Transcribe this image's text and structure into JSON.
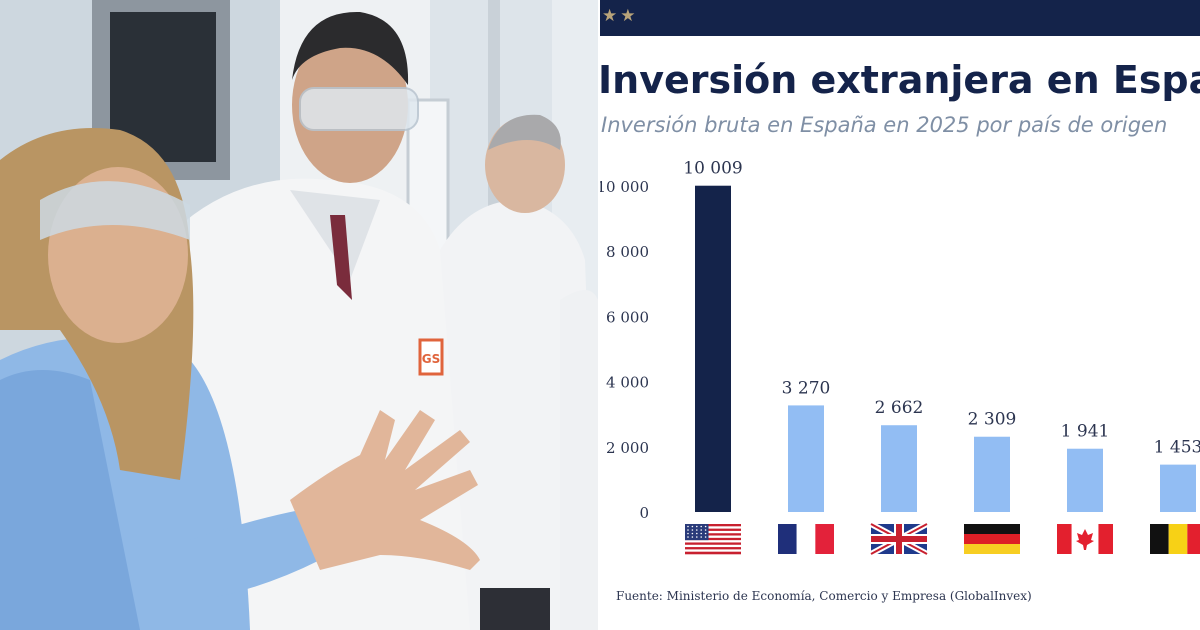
{
  "header": {
    "stars": "★★",
    "title": "Inversión extranjera en España",
    "subtitle": "Inversión bruta en España en 2025 por país de origen"
  },
  "photo": {
    "badge_text": "GS"
  },
  "chart_data": {
    "type": "bar",
    "title": "Inversión extranjera en España",
    "subtitle": "Inversión bruta en España en 2025 por país de origen",
    "categories": [
      "Estados Unidos",
      "Francia",
      "Reino Unido",
      "Alemania",
      "Canadá",
      "Bélgica"
    ],
    "category_icons": [
      "flag-usa",
      "flag-france",
      "flag-uk",
      "flag-germany",
      "flag-canada",
      "flag-belgium"
    ],
    "values": [
      10009,
      3270,
      2662,
      2309,
      1941,
      1453
    ],
    "value_labels": [
      "10 009",
      "3 270",
      "2 662",
      "2 309",
      "1 941",
      "1 453"
    ],
    "ylim": [
      0,
      10000
    ],
    "yticks": [
      0,
      2000,
      4000,
      6000,
      8000,
      10000
    ],
    "ytick_labels": [
      "0",
      "2 000",
      "4 000",
      "6 000",
      "8 000",
      "10 000"
    ],
    "grid": false,
    "colors": {
      "highlight": "#14234a",
      "bars": "#92bdf3",
      "text": "#2c3550"
    }
  },
  "source": "Fuente: Ministerio de Economía, Comercio y Empresa (GlobalInvex)"
}
